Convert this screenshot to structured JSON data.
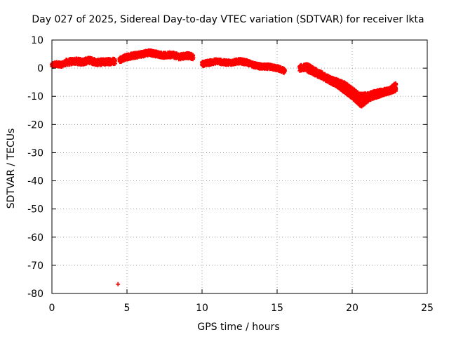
{
  "chart_data": {
    "type": "scatter",
    "title": "Day 027 of 2025, Sidereal Day-to-day VTEC variation (SDTVAR) for receiver lkta",
    "xlabel": "GPS time / hours",
    "ylabel": "SDTVAR / TECUs",
    "xlim": [
      0,
      25
    ],
    "ylim": [
      -80,
      10
    ],
    "xticks": [
      0,
      5,
      10,
      15,
      20,
      25
    ],
    "yticks": [
      10,
      0,
      -10,
      -20,
      -30,
      -40,
      -50,
      -60,
      -70,
      -80
    ],
    "xtick_labels": [
      "0",
      "5",
      "10",
      "15",
      "20",
      "25"
    ],
    "ytick_labels": [
      "10",
      "0",
      "-10",
      "-20",
      "-30",
      "-40",
      "-50",
      "-60",
      "-70",
      "-80"
    ],
    "grid": true,
    "marker": "plus",
    "color": "#ff0000",
    "series": [
      {
        "name": "SDTVAR",
        "segments": [
          {
            "x": [
              0.0,
              0.3,
              0.6,
              0.9
            ],
            "y": [
              1.0,
              1.5,
              1.2,
              1.8
            ],
            "spread": 1.5
          },
          {
            "x": [
              0.9,
              1.5,
              2.0,
              2.5,
              3.0,
              3.5,
              4.2
            ],
            "y": [
              2.0,
              2.5,
              2.2,
              2.8,
              2.0,
              2.2,
              2.5
            ],
            "spread": 2.0
          },
          {
            "x": [
              4.5,
              5.0,
              5.5,
              6.0,
              6.5,
              7.0,
              7.5,
              8.0,
              8.5,
              9.0,
              9.4
            ],
            "y": [
              3.0,
              4.0,
              4.5,
              5.0,
              5.5,
              5.0,
              4.5,
              4.8,
              4.0,
              4.5,
              4.0
            ],
            "spread": 1.8
          },
          {
            "x": [
              10.0,
              10.5,
              11.0,
              11.5,
              12.0,
              12.5,
              13.0,
              13.5,
              14.0,
              14.5,
              15.0,
              15.5
            ],
            "y": [
              1.5,
              2.0,
              2.5,
              2.0,
              2.0,
              2.5,
              2.0,
              1.0,
              0.5,
              0.5,
              0.0,
              -1.0
            ],
            "spread": 1.6
          },
          {
            "x": [
              16.5,
              17.0,
              17.5,
              18.0,
              18.5,
              19.0,
              19.5,
              20.0,
              20.5,
              21.0,
              21.5,
              22.0,
              22.5,
              22.9
            ],
            "y": [
              0.0,
              0.5,
              -1.0,
              -2.5,
              -4.0,
              -5.0,
              -6.0,
              -8.0,
              -10.0,
              -10.0,
              -9.0,
              -8.5,
              -8.0,
              -6.0
            ],
            "spread": 2.0
          },
          {
            "x": [
              17.0,
              18.0,
              19.0,
              20.0,
              20.6,
              21.2,
              22.0,
              22.9
            ],
            "y": [
              -0.5,
              -3.0,
              -6.0,
              -10.0,
              -13.0,
              -10.5,
              -9.0,
              -7.5
            ],
            "spread": 1.5
          }
        ],
        "outliers": [
          {
            "x": 4.4,
            "y": -76.7
          }
        ]
      }
    ]
  }
}
